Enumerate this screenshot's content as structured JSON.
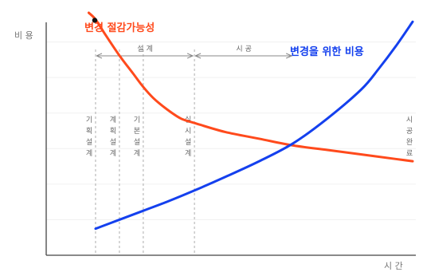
{
  "chart_data": {
    "type": "line",
    "ylabel": "비 용",
    "xlabel": "시 간",
    "ylim": [
      0,
      100
    ],
    "xlim": [
      0,
      100
    ],
    "grid": false,
    "phase_spans": [
      {
        "label": "설 계",
        "x_start": 7,
        "x_end": 36
      },
      {
        "label": "시 공",
        "x_start": 36,
        "x_end": 65
      }
    ],
    "phases": [
      {
        "label": "기획설계",
        "chars": [
          "기",
          "획",
          "설",
          "계"
        ],
        "x": 7
      },
      {
        "label": "계획설계",
        "chars": [
          "계",
          "획",
          "설",
          "계"
        ],
        "x": 14
      },
      {
        "label": "기본설계",
        "chars": [
          "기",
          "본",
          "설",
          "계"
        ],
        "x": 21
      },
      {
        "label": "실시설계",
        "chars": [
          "실",
          "시",
          "설",
          "계"
        ],
        "x": 36
      },
      {
        "label": "시공완료",
        "chars": [
          "시",
          "공",
          "완",
          "료"
        ],
        "x": 100
      }
    ],
    "series": [
      {
        "name": "변경 절감가능성",
        "color": "#ff4a1c",
        "x": [
          5,
          7,
          10,
          14,
          18,
          21,
          24,
          28,
          32,
          36,
          45,
          55,
          65,
          75,
          85,
          95,
          100
        ],
        "y": [
          100,
          97,
          90,
          81,
          73,
          67,
          62,
          57,
          53,
          51,
          47,
          44,
          41,
          39,
          37,
          35,
          34
        ]
      },
      {
        "name": "변경을 위한 비용",
        "color": "#1440ee",
        "x": [
          7,
          14,
          21,
          28,
          36,
          45,
          55,
          65,
          75,
          85,
          90,
          95,
          100
        ],
        "y": [
          4,
          8,
          12,
          16,
          21,
          27,
          34,
          42,
          53,
          66,
          75,
          85,
          96
        ]
      }
    ]
  }
}
